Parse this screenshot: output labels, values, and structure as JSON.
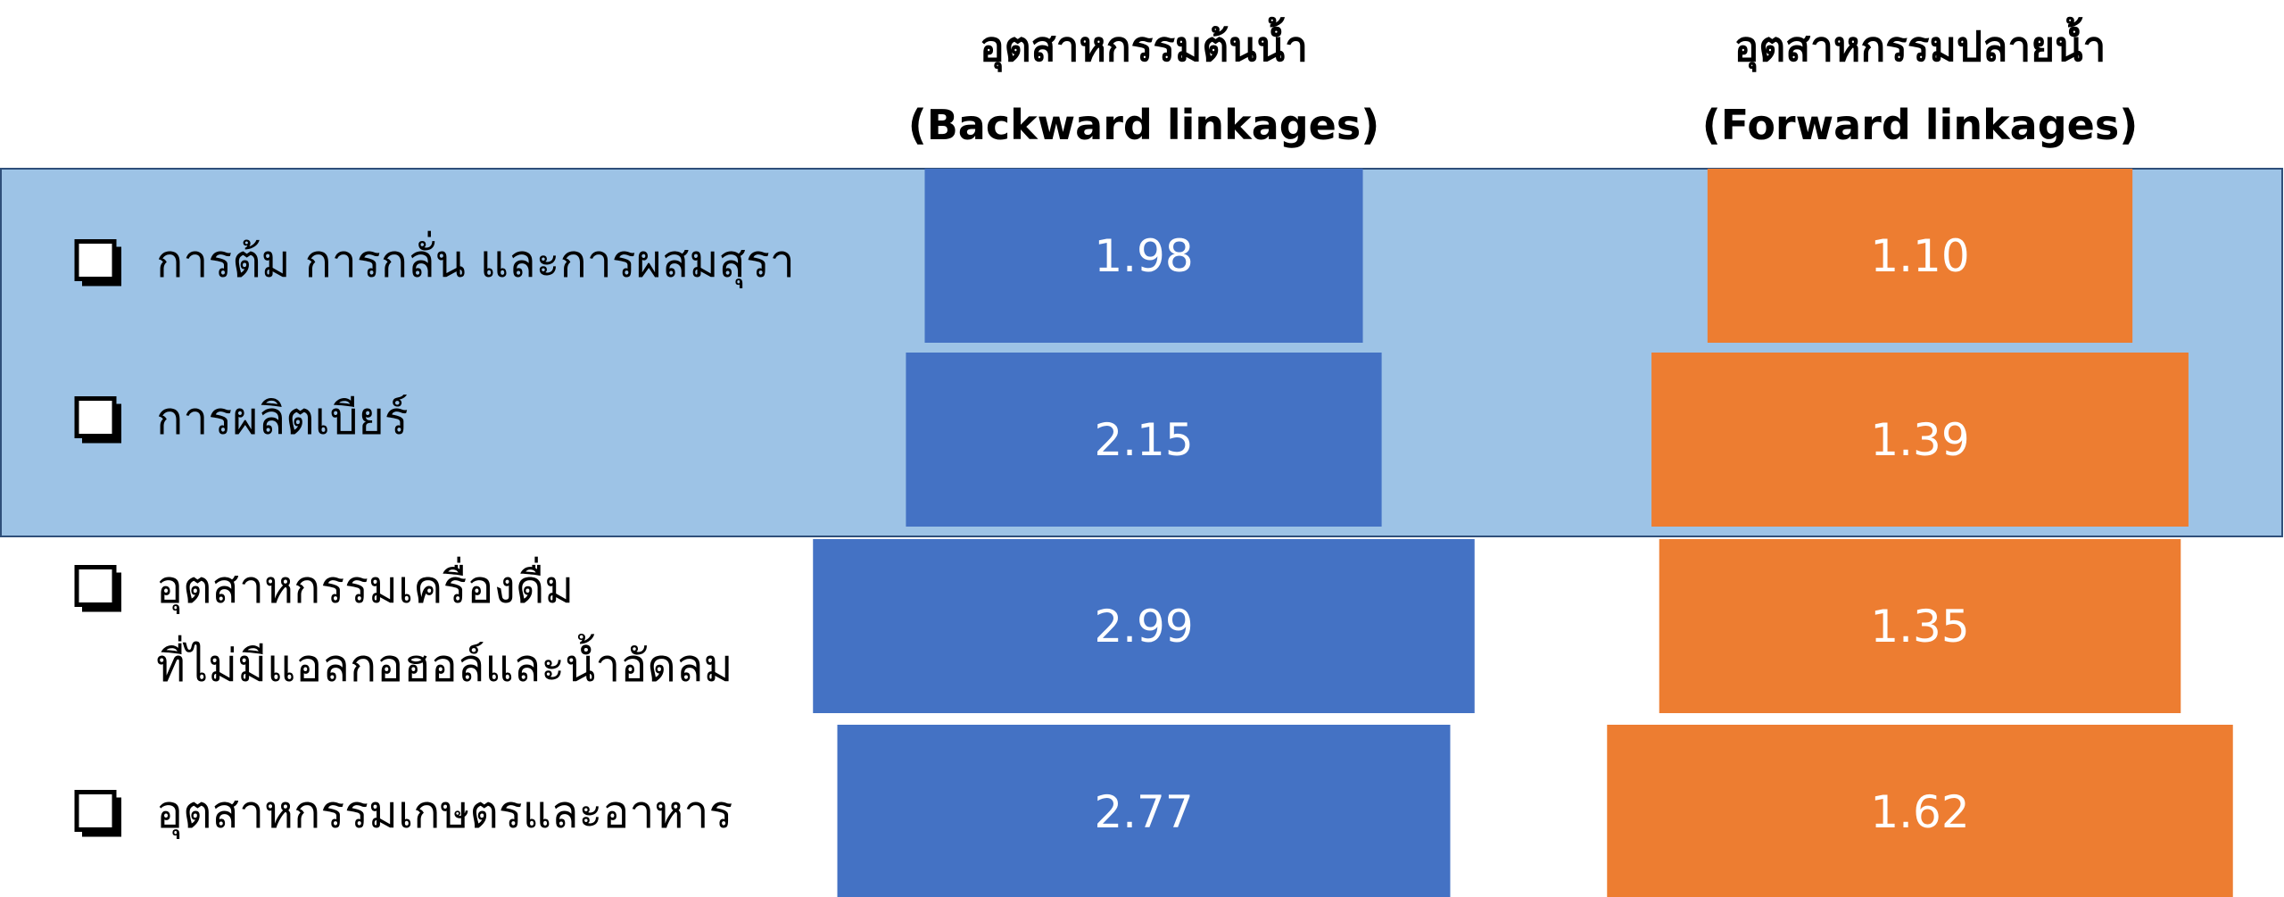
{
  "chart_data": {
    "type": "bar",
    "categories": [
      "การต้ม การกลั่น และการผสมสุรา",
      "การผลิตเบียร์",
      "อุตสาหกรรมเครื่องดื่ม\nที่ไม่มีแอลกอฮอล์และน้ำอัดลม",
      "อุตสาหกรรมเกษตรและอาหาร"
    ],
    "series": [
      {
        "name": "อุตสาหกรรมต้นน้ำ\n(Backward linkages)",
        "color": "#4472c4",
        "values": [
          1.98,
          2.15,
          2.99,
          2.77
        ]
      },
      {
        "name": "อุตสาหกรรมปลายน้ำ\n(Forward linkages)",
        "color": "#ed7d31",
        "values": [
          1.1,
          1.39,
          1.35,
          1.62
        ],
        "value_labels": [
          "1.10",
          "1.39",
          "1.35",
          "1.62"
        ]
      }
    ]
  }
}
